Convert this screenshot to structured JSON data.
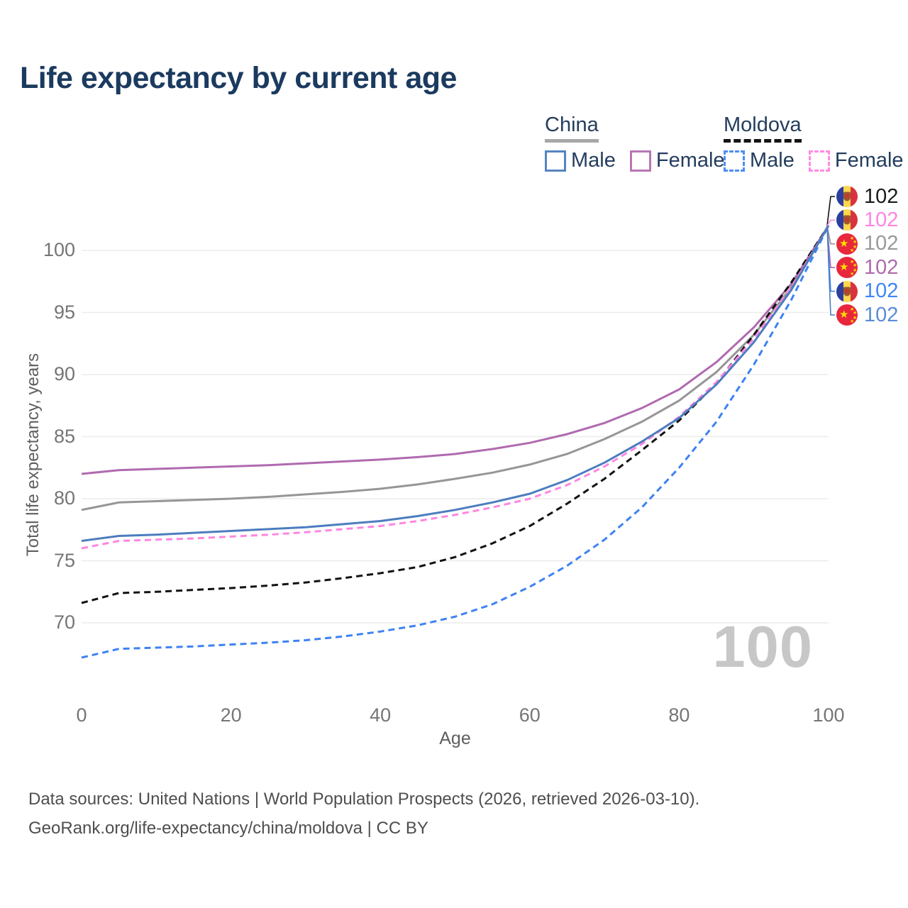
{
  "title": "Life expectancy by current age",
  "legend": {
    "china": {
      "label": "China",
      "male": "Male",
      "female": "Female"
    },
    "moldova": {
      "label": "Moldova",
      "male": "Male",
      "female": "Female"
    }
  },
  "axes": {
    "y_title": "Total life expectancy, years",
    "x_title": "Age",
    "y_ticks": [
      100,
      95,
      90,
      85,
      80,
      75,
      70
    ],
    "x_ticks": [
      0,
      20,
      40,
      60,
      80,
      100
    ]
  },
  "watermark": {
    "text": "100"
  },
  "footer": {
    "line1": "Data sources: United Nations | World Population Prospects (2026, retrieved 2026-03-10).",
    "line2": "GeoRank.org/life-expectancy/china/moldova | CC BY"
  },
  "colors": {
    "title_text": "#1b3a5f",
    "legend_text": "#243d5e",
    "tick_text": "#757575",
    "gridline": "#ececec",
    "watermark": "#c7c7c7",
    "china_male": "#4c7dbf",
    "china_female": "#b06ab0",
    "china_total": "#969696",
    "moldova_male": "#3d82f2",
    "moldova_female": "#ff85e1",
    "moldova_total": "#121212"
  },
  "end_labels": [
    {
      "series": "Moldova Total",
      "flag": "moldova-flag-icon",
      "value": "102",
      "text_color": "#1a1a1a",
      "connector_color": "#121212"
    },
    {
      "series": "Moldova Female",
      "flag": "moldova-flag-icon",
      "value": "102",
      "text_color": "#ff85e1",
      "connector_color": "#ff85e1"
    },
    {
      "series": "China Total",
      "flag": "china-flag-icon",
      "value": "102",
      "text_color": "#999999",
      "connector_color": "#969696"
    },
    {
      "series": "China Female",
      "flag": "china-flag-icon",
      "value": "102",
      "text_color": "#ad6bad",
      "connector_color": "#b06ab0"
    },
    {
      "series": "Moldova Male",
      "flag": "moldova-flag-icon",
      "value": "102",
      "text_color": "#3f86f7",
      "connector_color": "#3d82f2"
    },
    {
      "series": "China Male",
      "flag": "china-flag-icon",
      "value": "102",
      "text_color": "#5b8cd6",
      "connector_color": "#4c7dbf"
    }
  ],
  "chart_data": {
    "type": "line",
    "title": "Life expectancy by current age",
    "xlabel": "Age",
    "ylabel": "Total life expectancy, years",
    "x": [
      0,
      5,
      10,
      15,
      20,
      25,
      30,
      35,
      40,
      45,
      50,
      55,
      60,
      65,
      70,
      75,
      80,
      85,
      90,
      95,
      100
    ],
    "xlim": [
      0,
      100
    ],
    "ylim": [
      66,
      103
    ],
    "grid": "horizontal",
    "legend_position": "top-right",
    "series": [
      {
        "name": "China Total",
        "country": "China",
        "sex": "All",
        "style": "solid",
        "color": "#969696",
        "values": [
          79.1,
          79.7,
          79.8,
          79.9,
          80.0,
          80.15,
          80.35,
          80.55,
          80.8,
          81.15,
          81.6,
          82.1,
          82.75,
          83.6,
          84.8,
          86.2,
          87.9,
          90.2,
          93.2,
          97.0,
          102
        ]
      },
      {
        "name": "China Female",
        "country": "China",
        "sex": "Female",
        "style": "solid",
        "color": "#b06ab0",
        "values": [
          82.0,
          82.3,
          82.4,
          82.5,
          82.6,
          82.7,
          82.85,
          83.0,
          83.15,
          83.35,
          83.6,
          84.0,
          84.5,
          85.2,
          86.1,
          87.3,
          88.8,
          91.0,
          93.8,
          97.3,
          102
        ]
      },
      {
        "name": "Moldova Total",
        "country": "Moldova",
        "sex": "All",
        "style": "dashed",
        "color": "#121212",
        "values": [
          71.6,
          72.4,
          72.5,
          72.65,
          72.8,
          73.0,
          73.25,
          73.6,
          74.0,
          74.5,
          75.3,
          76.4,
          77.8,
          79.6,
          81.6,
          83.9,
          86.3,
          89.3,
          93.2,
          97.4,
          102
        ]
      },
      {
        "name": "Moldova Male",
        "country": "Moldova",
        "sex": "Male",
        "style": "dashed",
        "color": "#3d82f2",
        "values": [
          67.2,
          67.9,
          68.0,
          68.1,
          68.25,
          68.4,
          68.6,
          68.9,
          69.3,
          69.8,
          70.5,
          71.5,
          72.9,
          74.6,
          76.7,
          79.3,
          82.5,
          86.2,
          90.8,
          96.0,
          102
        ]
      },
      {
        "name": "Moldova Female",
        "country": "Moldova",
        "sex": "Female",
        "style": "dashed",
        "color": "#ff85e1",
        "values": [
          76.0,
          76.6,
          76.7,
          76.8,
          76.95,
          77.1,
          77.3,
          77.55,
          77.8,
          78.2,
          78.7,
          79.3,
          80.0,
          81.1,
          82.6,
          84.4,
          86.6,
          89.4,
          92.9,
          97.0,
          102
        ]
      },
      {
        "name": "China Male",
        "country": "China",
        "sex": "Male",
        "style": "solid",
        "color": "#4c7dbf",
        "values": [
          76.6,
          77.0,
          77.1,
          77.25,
          77.4,
          77.55,
          77.7,
          77.95,
          78.2,
          78.6,
          79.1,
          79.7,
          80.4,
          81.5,
          82.9,
          84.6,
          86.5,
          89.2,
          92.6,
          96.8,
          102
        ]
      }
    ],
    "end_value_label": 102
  }
}
